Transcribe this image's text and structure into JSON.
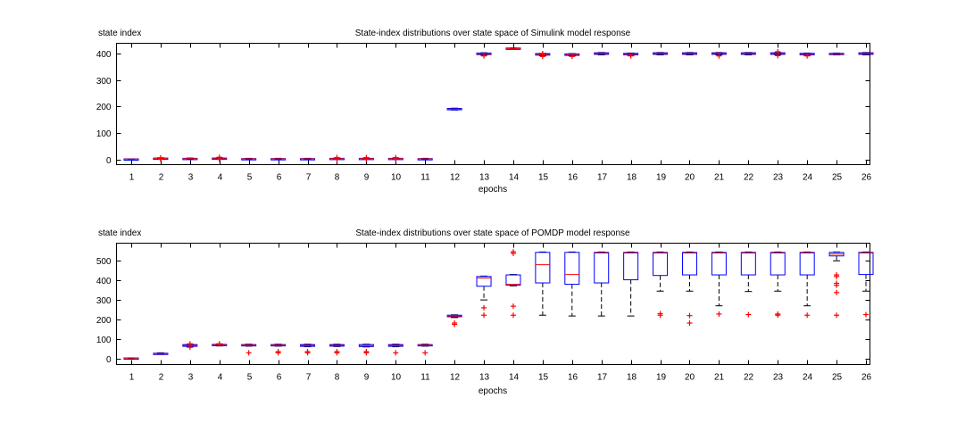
{
  "chart_data": [
    {
      "type": "box",
      "title": "State-index distributions over state space of Simulink model response",
      "xlabel": "epochs",
      "ylabel": "state index",
      "categories": [
        "1",
        "2",
        "3",
        "4",
        "5",
        "6",
        "7",
        "8",
        "9",
        "10",
        "11",
        "12",
        "13",
        "14",
        "15",
        "16",
        "17",
        "18",
        "19",
        "20",
        "21",
        "22",
        "23",
        "24",
        "25",
        "26"
      ],
      "yticks": [
        0,
        100,
        200,
        300,
        400
      ],
      "ylim": [
        -20,
        440
      ],
      "boxes": [
        {
          "q1": 1,
          "med": 1,
          "q3": 2,
          "lo": 0,
          "hi": 2,
          "outliers": []
        },
        {
          "q1": 3,
          "med": 4,
          "q3": 5,
          "lo": 2,
          "hi": 6,
          "outliers": [
            1,
            6
          ]
        },
        {
          "q1": 2,
          "med": 3,
          "q3": 4,
          "lo": 1,
          "hi": 5,
          "outliers": []
        },
        {
          "q1": 2,
          "med": 3,
          "q3": 5,
          "lo": 1,
          "hi": 6,
          "outliers": [
            0,
            8
          ]
        },
        {
          "q1": 1,
          "med": 2,
          "q3": 3,
          "lo": 0,
          "hi": 4,
          "outliers": []
        },
        {
          "q1": 1,
          "med": 2,
          "q3": 3,
          "lo": 0,
          "hi": 4,
          "outliers": []
        },
        {
          "q1": 1,
          "med": 2,
          "q3": 3,
          "lo": 0,
          "hi": 4,
          "outliers": []
        },
        {
          "q1": 2,
          "med": 3,
          "q3": 4,
          "lo": 1,
          "hi": 5,
          "outliers": [
            0,
            7
          ]
        },
        {
          "q1": 2,
          "med": 3,
          "q3": 4,
          "lo": 1,
          "hi": 5,
          "outliers": [
            0,
            7
          ]
        },
        {
          "q1": 2,
          "med": 3,
          "q3": 4,
          "lo": 1,
          "hi": 5,
          "outliers": [
            0,
            7
          ]
        },
        {
          "q1": 1,
          "med": 2,
          "q3": 3,
          "lo": 0,
          "hi": 4,
          "outliers": []
        },
        {
          "q1": 188,
          "med": 190,
          "q3": 193,
          "lo": 187,
          "hi": 194,
          "outliers": []
        },
        {
          "q1": 397,
          "med": 400,
          "q3": 403,
          "lo": 395,
          "hi": 404,
          "outliers": [
            392
          ]
        },
        {
          "q1": 418,
          "med": 420,
          "q3": 422,
          "lo": 418,
          "hi": 422,
          "outliers": []
        },
        {
          "q1": 395,
          "med": 398,
          "q3": 401,
          "lo": 393,
          "hi": 402,
          "outliers": [
            390,
            397,
            401
          ]
        },
        {
          "q1": 394,
          "med": 397,
          "q3": 400,
          "lo": 392,
          "hi": 401,
          "outliers": [
            390
          ]
        },
        {
          "q1": 398,
          "med": 401,
          "q3": 404,
          "lo": 396,
          "hi": 405,
          "outliers": []
        },
        {
          "q1": 396,
          "med": 399,
          "q3": 402,
          "lo": 394,
          "hi": 403,
          "outliers": [
            392
          ]
        },
        {
          "q1": 398,
          "med": 401,
          "q3": 404,
          "lo": 396,
          "hi": 405,
          "outliers": []
        },
        {
          "q1": 398,
          "med": 401,
          "q3": 404,
          "lo": 396,
          "hi": 405,
          "outliers": []
        },
        {
          "q1": 398,
          "med": 401,
          "q3": 404,
          "lo": 396,
          "hi": 405,
          "outliers": [
            392
          ]
        },
        {
          "q1": 398,
          "med": 401,
          "q3": 404,
          "lo": 396,
          "hi": 405,
          "outliers": []
        },
        {
          "q1": 398,
          "med": 401,
          "q3": 404,
          "lo": 396,
          "hi": 405,
          "outliers": [
            393,
            408
          ]
        },
        {
          "q1": 396,
          "med": 399,
          "q3": 402,
          "lo": 394,
          "hi": 403,
          "outliers": [
            392
          ]
        },
        {
          "q1": 397,
          "med": 400,
          "q3": 402,
          "lo": 396,
          "hi": 403,
          "outliers": []
        },
        {
          "q1": 398,
          "med": 401,
          "q3": 404,
          "lo": 396,
          "hi": 405,
          "outliers": []
        }
      ]
    },
    {
      "type": "box",
      "title": "State-index distributions over state space of POMDP model response",
      "xlabel": "epochs",
      "ylabel": "state index",
      "categories": [
        "1",
        "2",
        "3",
        "4",
        "5",
        "6",
        "7",
        "8",
        "9",
        "10",
        "11",
        "12",
        "13",
        "14",
        "15",
        "16",
        "17",
        "18",
        "19",
        "20",
        "21",
        "22",
        "23",
        "24",
        "25",
        "26"
      ],
      "yticks": [
        0,
        100,
        200,
        300,
        400,
        500
      ],
      "ylim": [
        -30,
        590
      ],
      "boxes": [
        {
          "q1": 2,
          "med": 3,
          "q3": 4,
          "lo": 2,
          "hi": 4,
          "outliers": []
        },
        {
          "q1": 24,
          "med": 26,
          "q3": 28,
          "lo": 22,
          "hi": 30,
          "outliers": []
        },
        {
          "q1": 63,
          "med": 68,
          "q3": 72,
          "lo": 60,
          "hi": 74,
          "outliers": [
            58,
            76
          ]
        },
        {
          "q1": 67,
          "med": 70,
          "q3": 73,
          "lo": 65,
          "hi": 75,
          "outliers": [
            76
          ]
        },
        {
          "q1": 66,
          "med": 69,
          "q3": 72,
          "lo": 64,
          "hi": 74,
          "outliers": [
            30
          ]
        },
        {
          "q1": 66,
          "med": 69,
          "q3": 72,
          "lo": 64,
          "hi": 74,
          "outliers": [
            30,
            36
          ]
        },
        {
          "q1": 63,
          "med": 68,
          "q3": 72,
          "lo": 61,
          "hi": 74,
          "outliers": [
            30,
            36
          ]
        },
        {
          "q1": 64,
          "med": 68,
          "q3": 72,
          "lo": 62,
          "hi": 74,
          "outliers": [
            30,
            36
          ]
        },
        {
          "q1": 62,
          "med": 67,
          "q3": 72,
          "lo": 60,
          "hi": 74,
          "outliers": [
            30,
            36
          ]
        },
        {
          "q1": 63,
          "med": 68,
          "q3": 72,
          "lo": 61,
          "hi": 74,
          "outliers": [
            30
          ]
        },
        {
          "q1": 66,
          "med": 69,
          "q3": 72,
          "lo": 64,
          "hi": 74,
          "outliers": [
            30
          ]
        },
        {
          "q1": 214,
          "med": 218,
          "q3": 222,
          "lo": 210,
          "hi": 224,
          "outliers": [
            175,
            182
          ]
        },
        {
          "q1": 370,
          "med": 412,
          "q3": 420,
          "lo": 300,
          "hi": 422,
          "outliers": [
            222,
            260
          ]
        },
        {
          "q1": 375,
          "med": 380,
          "q3": 428,
          "lo": 372,
          "hi": 430,
          "outliers": [
            222,
            268,
            538,
            546
          ]
        },
        {
          "q1": 387,
          "med": 480,
          "q3": 543,
          "lo": 222,
          "hi": 545,
          "outliers": []
        },
        {
          "q1": 380,
          "med": 430,
          "q3": 543,
          "lo": 218,
          "hi": 545,
          "outliers": []
        },
        {
          "q1": 387,
          "med": 540,
          "q3": 543,
          "lo": 218,
          "hi": 545,
          "outliers": []
        },
        {
          "q1": 403,
          "med": 540,
          "q3": 543,
          "lo": 218,
          "hi": 545,
          "outliers": []
        },
        {
          "q1": 425,
          "med": 540,
          "q3": 543,
          "lo": 345,
          "hi": 545,
          "outliers": [
            222,
            230
          ]
        },
        {
          "q1": 428,
          "med": 540,
          "q3": 543,
          "lo": 345,
          "hi": 545,
          "outliers": [
            182,
            220
          ]
        },
        {
          "q1": 428,
          "med": 540,
          "q3": 543,
          "lo": 270,
          "hi": 545,
          "outliers": [
            228
          ]
        },
        {
          "q1": 428,
          "med": 540,
          "q3": 543,
          "lo": 343,
          "hi": 545,
          "outliers": [
            225
          ]
        },
        {
          "q1": 428,
          "med": 540,
          "q3": 543,
          "lo": 345,
          "hi": 545,
          "outliers": [
            222,
            228
          ]
        },
        {
          "q1": 428,
          "med": 540,
          "q3": 543,
          "lo": 270,
          "hi": 545,
          "outliers": [
            222
          ]
        },
        {
          "q1": 525,
          "med": 535,
          "q3": 543,
          "lo": 500,
          "hi": 545,
          "outliers": [
            222,
            338,
            375,
            385,
            420,
            428
          ]
        },
        {
          "q1": 430,
          "med": 540,
          "q3": 543,
          "lo": 345,
          "hi": 545,
          "outliers": [
            225
          ]
        }
      ]
    }
  ]
}
